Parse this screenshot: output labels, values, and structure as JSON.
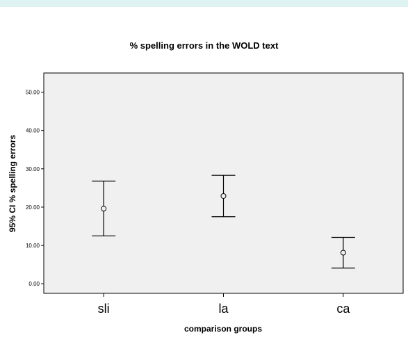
{
  "chart_data": {
    "type": "errorbar",
    "title": "% spelling errors in the WOLD text",
    "xlabel": "comparison groups",
    "ylabel": "95% CI % spelling errors",
    "categories": [
      "sli",
      "la",
      "ca"
    ],
    "means": [
      19.6,
      22.9,
      8.1
    ],
    "ci_lower": [
      12.5,
      17.5,
      4.1
    ],
    "ci_upper": [
      26.8,
      28.3,
      12.1
    ],
    "ylim": [
      -2.5,
      55.0
    ],
    "yticks": [
      0,
      10,
      20,
      30,
      40,
      50
    ],
    "ytick_labels": [
      "0.00",
      "10.00",
      "20.00",
      "30.00",
      "40.00",
      "50.00"
    ],
    "grid": false,
    "colors": {
      "plot_background": "#f0f0f0",
      "marks": "#000000",
      "top_band": "#dff3f3"
    }
  }
}
